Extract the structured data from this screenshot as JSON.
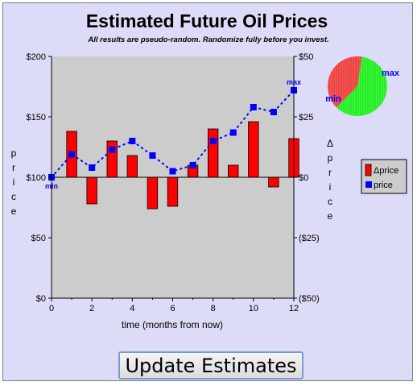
{
  "chart_data": {
    "type": "bar",
    "title": "Estimated Future Oil Prices",
    "subtitle": "All results are pseudo-random. Randomize fully before you invest.",
    "xlabel": "time (months from now)",
    "ylabel": "price",
    "y2label": "Δprice",
    "x": [
      0,
      1,
      2,
      3,
      4,
      5,
      6,
      7,
      8,
      9,
      10,
      11,
      12
    ],
    "xlim": [
      0,
      12
    ],
    "xticks": [
      "0",
      "2",
      "4",
      "6",
      "8",
      "10",
      "12"
    ],
    "ylim": [
      0,
      200
    ],
    "yticks": [
      "$0",
      "$50",
      "$100",
      "$150",
      "$200"
    ],
    "y2lim": [
      -50,
      50
    ],
    "y2ticks": [
      "($50)",
      "($25)",
      "$0",
      "$25",
      "$50"
    ],
    "grid": false,
    "legend_position": "right",
    "series": [
      {
        "name": "Δprice",
        "kind": "bar",
        "color": "#ff0000",
        "values": [
          0,
          19,
          -11,
          15,
          9,
          -13,
          -12,
          5,
          20,
          5,
          23,
          -4,
          16
        ]
      },
      {
        "name": "price",
        "kind": "line-dotted-markers",
        "color": "#0000ff",
        "values": [
          100,
          119,
          108,
          123,
          130,
          118,
          105,
          110,
          130,
          137,
          158,
          154,
          172
        ]
      }
    ],
    "point_labels": {
      "min": "min",
      "max": "max"
    },
    "pie": {
      "labels": [
        "min",
        "max"
      ],
      "values": [
        40,
        60
      ],
      "colors": [
        "#ff5050",
        "#33ff33"
      ]
    },
    "colors": {
      "plot_bg": "#cccccc",
      "frame_bg": "#dcdcf8",
      "bar": "#ff0000",
      "line": "#0000ff",
      "pie_min": "#ff5050",
      "pie_max": "#33ff33"
    }
  },
  "button": {
    "label": "Update Estimates"
  }
}
